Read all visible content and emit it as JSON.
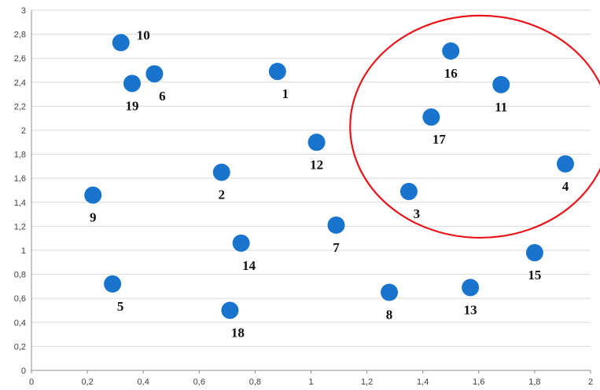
{
  "chart_data": {
    "type": "scatter",
    "title": "",
    "xlabel": "",
    "ylabel": "",
    "xlim": [
      0,
      2
    ],
    "ylim": [
      0,
      3
    ],
    "x_ticks": [
      "0",
      "0,2",
      "0,4",
      "0,6",
      "0,8",
      "1",
      "1,2",
      "1,4",
      "1,6",
      "1,8",
      "2"
    ],
    "y_ticks": [
      "0",
      "0,2",
      "0,4",
      "0,6",
      "0,8",
      "1",
      "1,2",
      "1,4",
      "1,6",
      "1,8",
      "2",
      "2,2",
      "2,4",
      "2,6",
      "2,8",
      "3"
    ],
    "grid": "horizontal",
    "marker_color": "#1874CD",
    "highlight_color": "#E8141A",
    "points": [
      {
        "label": "1",
        "x": 0.88,
        "y": 2.49,
        "label_pos": "below-right"
      },
      {
        "label": "2",
        "x": 0.68,
        "y": 1.65,
        "label_pos": "below"
      },
      {
        "label": "3",
        "x": 1.35,
        "y": 1.49,
        "label_pos": "below-right"
      },
      {
        "label": "4",
        "x": 1.91,
        "y": 1.72,
        "label_pos": "below"
      },
      {
        "label": "5",
        "x": 0.29,
        "y": 0.72,
        "label_pos": "below-right"
      },
      {
        "label": "6",
        "x": 0.44,
        "y": 2.47,
        "label_pos": "below-right"
      },
      {
        "label": "7",
        "x": 1.09,
        "y": 1.21,
        "label_pos": "below"
      },
      {
        "label": "8",
        "x": 1.28,
        "y": 0.65,
        "label_pos": "below"
      },
      {
        "label": "9",
        "x": 0.22,
        "y": 1.46,
        "label_pos": "below"
      },
      {
        "label": "10",
        "x": 0.32,
        "y": 2.73,
        "label_pos": "right"
      },
      {
        "label": "11",
        "x": 1.68,
        "y": 2.38,
        "label_pos": "below"
      },
      {
        "label": "12",
        "x": 1.02,
        "y": 1.9,
        "label_pos": "below"
      },
      {
        "label": "13",
        "x": 1.57,
        "y": 0.69,
        "label_pos": "below"
      },
      {
        "label": "14",
        "x": 0.75,
        "y": 1.06,
        "label_pos": "below-right"
      },
      {
        "label": "15",
        "x": 1.8,
        "y": 0.98,
        "label_pos": "below"
      },
      {
        "label": "16",
        "x": 1.5,
        "y": 2.66,
        "label_pos": "below"
      },
      {
        "label": "17",
        "x": 1.43,
        "y": 2.11,
        "label_pos": "below-right"
      },
      {
        "label": "18",
        "x": 0.71,
        "y": 0.5,
        "label_pos": "below-right"
      },
      {
        "label": "19",
        "x": 0.36,
        "y": 2.39,
        "label_pos": "below"
      }
    ],
    "highlight_ellipse": {
      "center_x": 1.605,
      "center_y": 2.03,
      "radius_x": 0.465,
      "radius_y": 0.925
    }
  }
}
